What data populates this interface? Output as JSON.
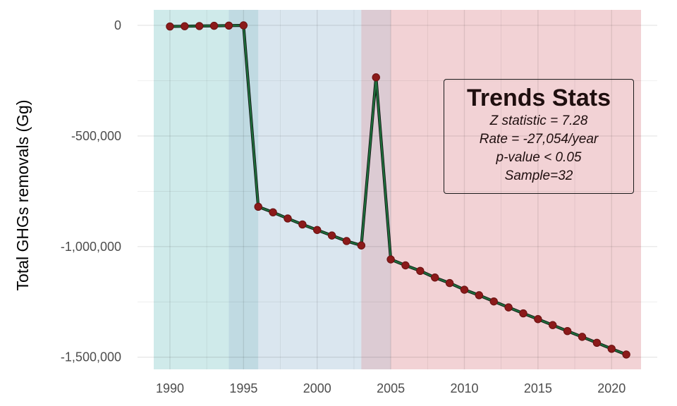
{
  "chart_data": {
    "type": "line",
    "title": "",
    "xlabel": "",
    "ylabel": "Total GHGs removals (Gg)",
    "xlim": [
      1988.9,
      2022.0
    ],
    "ylim": [
      -1555000,
      70000
    ],
    "x_ticks": [
      1990,
      1995,
      2000,
      2005,
      2010,
      2015,
      2020
    ],
    "x_tick_labels": [
      "1990",
      "1995",
      "2000",
      "2005",
      "2010",
      "2015",
      "2020"
    ],
    "y_ticks": [
      0,
      -500000,
      -1000000,
      -1500000
    ],
    "y_tick_labels": [
      "0",
      "-500,000",
      "-1,000,000",
      "-1,500,000"
    ],
    "grid": true,
    "line_color": "#1e6b3a",
    "point_color": "#8b1a1a",
    "bands": [
      {
        "x0": 1988.9,
        "x1": 1994.0,
        "color": "#4db1b3",
        "opacity": 0.27
      },
      {
        "x0": 1994.0,
        "x1": 1996.0,
        "color": "#3f8ea8",
        "opacity": 0.33
      },
      {
        "x0": 1996.0,
        "x1": 2003.0,
        "color": "#96b7d2",
        "opacity": 0.35
      },
      {
        "x0": 2003.0,
        "x1": 2005.0,
        "color": "#a77c92",
        "opacity": 0.4
      },
      {
        "x0": 2005.0,
        "x1": 2022.0,
        "color": "#dc8a90",
        "opacity": 0.38
      }
    ],
    "series": [
      {
        "x": [
          1990,
          1991,
          1992,
          1993,
          1994,
          1995,
          1996,
          1997,
          1998,
          1999,
          2000,
          2001,
          2002,
          2003,
          2004,
          2005,
          2006,
          2007,
          2008,
          2009,
          2010,
          2011,
          2012,
          2013,
          2014,
          2015,
          2016,
          2017,
          2018,
          2019,
          2020,
          2021
        ],
        "y": [
          -5000,
          -4000,
          -3000,
          -2000,
          -1000,
          0,
          -820000,
          -845000,
          -873000,
          -900000,
          -925000,
          -950000,
          -975000,
          -995000,
          -235000,
          -1058000,
          -1085000,
          -1110000,
          -1140000,
          -1165000,
          -1195000,
          -1220000,
          -1248000,
          -1275000,
          -1302000,
          -1328000,
          -1355000,
          -1382000,
          -1408000,
          -1435000,
          -1462000,
          -1488000
        ]
      }
    ]
  },
  "stats_box": {
    "title": "Trends Stats",
    "z_statistic": "Z statistic = 7.28",
    "rate": "Rate = -27,054/year",
    "p_value": "p-value < 0.05",
    "sample": "Sample=32"
  }
}
